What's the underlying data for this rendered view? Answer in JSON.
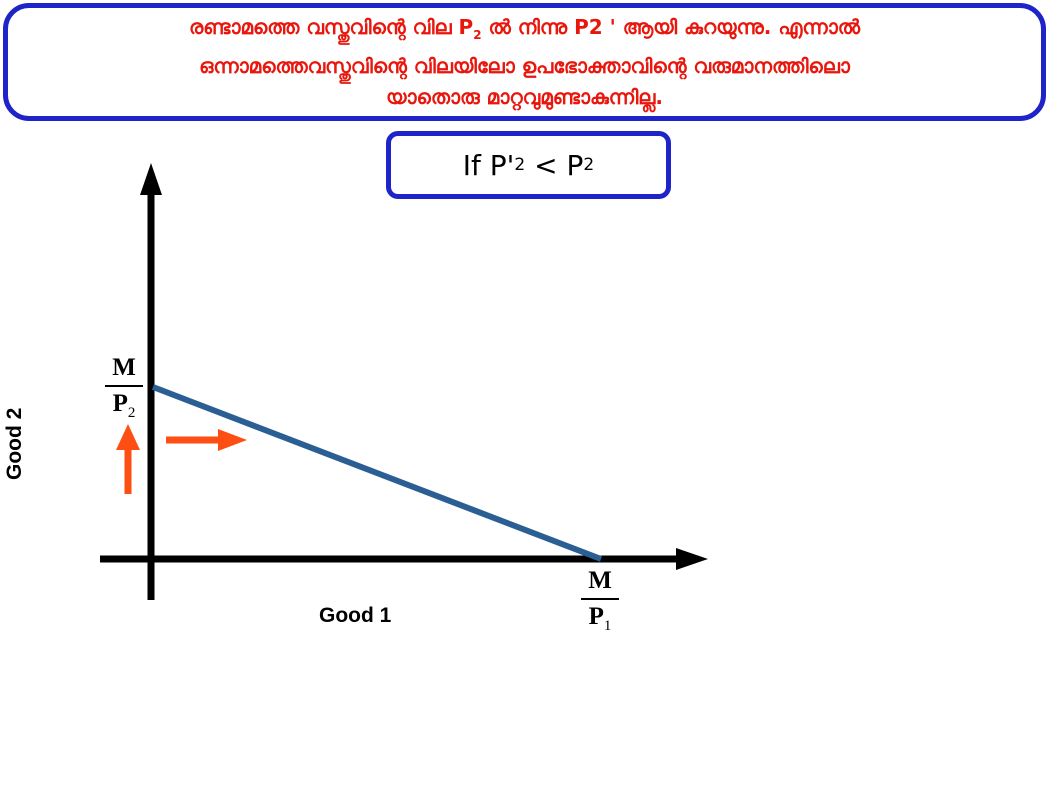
{
  "note": {
    "line1_a": "രണ്ടാമത്തെ വസ്തുവിന്റെ വില P",
    "line1_sub": "2",
    "line1_b": " ൽ നിന്നു P2 ' ആയി കുറയുന്നു. എന്നാൽ",
    "line2": "ഒന്നാമത്തെവസ്തുവിന്റെ വിലയിലോ ഉപഭോക്താവിന്റെ വരുമാനത്തിലൊ",
    "line3": "യാതൊരു മാറ്റവുമുണ്ടാകുന്നില്ല."
  },
  "condition": {
    "prefix": "If P'",
    "sub1": "2",
    "middle": " < P",
    "sub2": "2"
  },
  "diagram": {
    "x_axis_label": "Good 1",
    "y_axis_label": "Good 2",
    "y_intercept_label": {
      "numerator": "M",
      "denominator": "P",
      "sub": "2"
    },
    "x_intercept_label": {
      "numerator": "M",
      "denominator": "P",
      "sub": "1"
    },
    "budget_line_color": "#2b5f94",
    "axis_color": "#000000",
    "arrow_color": "#fd4e14"
  }
}
